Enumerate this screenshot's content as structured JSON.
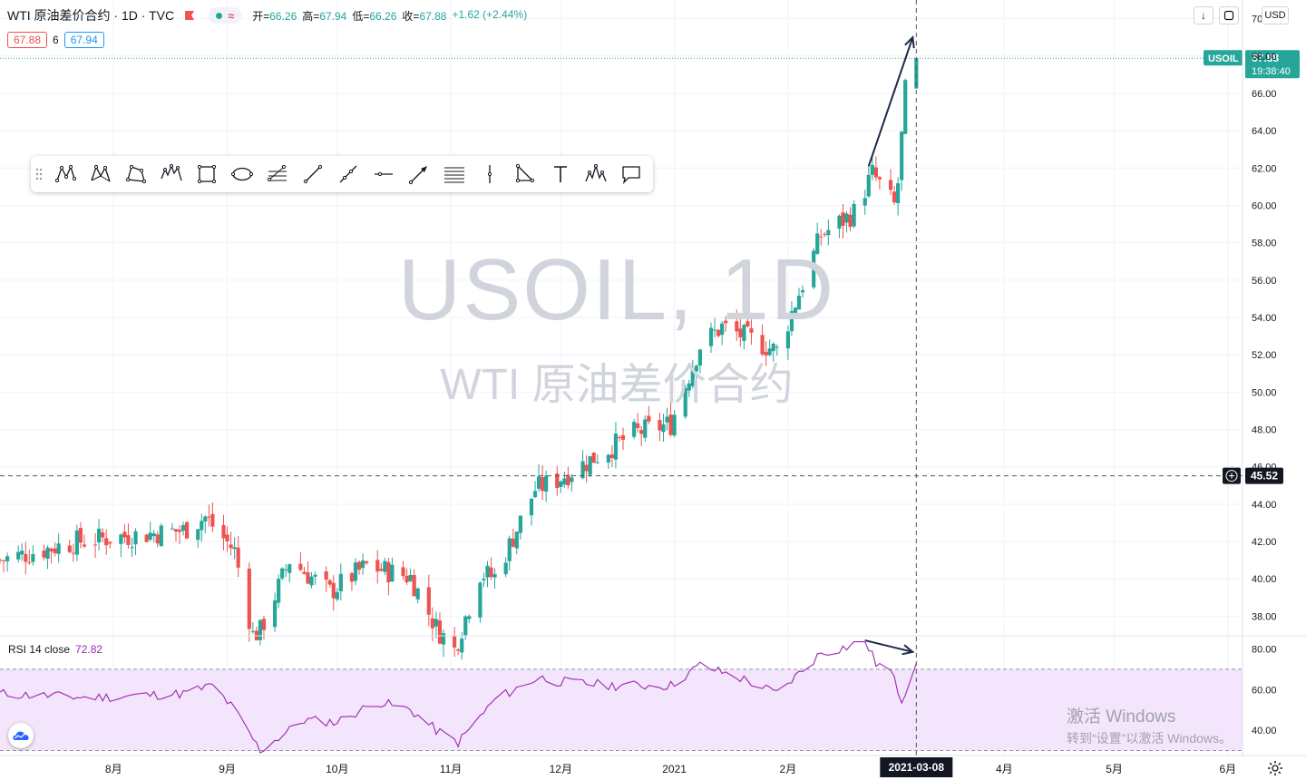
{
  "header": {
    "symbol_title": "WTI 原油差价合约 · 1D · TVC",
    "ohlc": {
      "open_label": "开",
      "open": "66.26",
      "high_label": "高",
      "high": "67.94",
      "low_label": "低",
      "low": "66.26",
      "close_label": "收",
      "close": "67.88",
      "change": "+1.62 (+2.44%)"
    },
    "sell_price": "67.88",
    "spread": "6",
    "buy_price": "67.94",
    "currency": "USD"
  },
  "watermark": {
    "line1": "USOIL, 1D",
    "line2": "WTI 原油差价合约"
  },
  "price_axis_labels": [
    "70.00",
    "68.00",
    "66.00",
    "64.00",
    "62.00",
    "60.00",
    "58.00",
    "56.00",
    "54.00",
    "52.00",
    "50.00",
    "48.00",
    "46.00",
    "44.00",
    "42.00",
    "40.00",
    "38.00"
  ],
  "last_price_tag": {
    "symbol": "USOIL",
    "price": "67.88",
    "countdown": "19:38:40"
  },
  "crosshair_price": "45.52",
  "crosshair_date": "2021-03-08",
  "rsi": {
    "label": "RSI 14 close",
    "value": "72.82",
    "axis_labels": [
      "80.00",
      "60.00",
      "40.00"
    ],
    "upper_band": 70,
    "lower_band": 30
  },
  "time_axis_labels": [
    "8月",
    "9月",
    "10月",
    "11月",
    "12月",
    "2021",
    "2月",
    "4月",
    "5月",
    "6月"
  ],
  "windows_activation": {
    "line1": "激活 Windows",
    "line2": "转到“设置”以激活 Windows。"
  },
  "toolbar": {
    "tools": [
      "xabcd-pattern-icon",
      "cypher-pattern-icon",
      "abcd-pattern-icon",
      "elliott-wave-icon",
      "rectangle-icon",
      "ellipse-icon",
      "fib-retracement-icon",
      "trend-line-icon",
      "ray-icon",
      "horizontal-line-icon",
      "arrow-icon",
      "parallel-channel-icon",
      "vertical-line-icon",
      "triangle-icon",
      "text-icon",
      "head-shoulders-icon",
      "callout-icon"
    ]
  },
  "colors": {
    "up": "#26a69a",
    "down": "#ef5350",
    "rsi_line": "#9c27b0",
    "rsi_band": "#f3e5fb",
    "arrow": "#1e2a4a"
  },
  "chart_data": [
    {
      "type": "candlestick",
      "title": "USOIL, 1D",
      "ylim": [
        37,
        71
      ],
      "x_range": [
        "2020-07-01",
        "2021-06-05"
      ],
      "anchors": [
        {
          "date": "2020-07-01",
          "close": 41.0
        },
        {
          "date": "2020-07-22",
          "close": 42.0
        },
        {
          "date": "2020-08-05",
          "close": 42.3
        },
        {
          "date": "2020-08-20",
          "close": 42.6
        },
        {
          "date": "2020-08-26",
          "close": 43.3
        },
        {
          "date": "2020-09-03",
          "close": 41.5
        },
        {
          "date": "2020-09-08",
          "close": 37.0
        },
        {
          "date": "2020-09-10",
          "close": 37.2
        },
        {
          "date": "2020-09-18",
          "close": 41.0
        },
        {
          "date": "2020-09-29",
          "close": 39.3
        },
        {
          "date": "2020-10-09",
          "close": 40.7
        },
        {
          "date": "2020-10-21",
          "close": 40.1
        },
        {
          "date": "2020-10-28",
          "close": 37.4
        },
        {
          "date": "2020-11-02",
          "close": 36.2
        },
        {
          "date": "2020-11-09",
          "close": 40.3
        },
        {
          "date": "2020-11-13",
          "close": 40.1
        },
        {
          "date": "2020-11-24",
          "close": 44.8
        },
        {
          "date": "2020-11-30",
          "close": 45.3
        },
        {
          "date": "2020-12-11",
          "close": 46.6
        },
        {
          "date": "2020-12-21",
          "close": 47.8
        },
        {
          "date": "2020-12-31",
          "close": 48.3
        },
        {
          "date": "2021-01-08",
          "close": 52.5
        },
        {
          "date": "2021-01-14",
          "close": 53.5
        },
        {
          "date": "2021-01-29",
          "close": 52.2
        },
        {
          "date": "2021-02-10",
          "close": 58.4
        },
        {
          "date": "2021-02-19",
          "close": 59.6
        },
        {
          "date": "2021-02-24",
          "close": 61.7
        },
        {
          "date": "2021-03-02",
          "close": 60.0
        },
        {
          "date": "2021-03-03",
          "close": 61.2
        },
        {
          "date": "2021-03-05",
          "close": 66.1
        },
        {
          "date": "2021-03-08",
          "open": 66.26,
          "high": 67.94,
          "low": 66.26,
          "close": 67.88
        }
      ]
    },
    {
      "type": "line",
      "title": "RSI 14 close",
      "ylim": [
        28,
        86
      ],
      "anchors": [
        {
          "date": "2020-07-01",
          "value": 58
        },
        {
          "date": "2020-07-25",
          "value": 56
        },
        {
          "date": "2020-08-20",
          "value": 58
        },
        {
          "date": "2020-08-28",
          "value": 62
        },
        {
          "date": "2020-09-03",
          "value": 50
        },
        {
          "date": "2020-09-10",
          "value": 30
        },
        {
          "date": "2020-09-22",
          "value": 45
        },
        {
          "date": "2020-10-01",
          "value": 44
        },
        {
          "date": "2020-10-12",
          "value": 54
        },
        {
          "date": "2020-10-21",
          "value": 50
        },
        {
          "date": "2020-10-28",
          "value": 40
        },
        {
          "date": "2020-11-03",
          "value": 34
        },
        {
          "date": "2020-11-13",
          "value": 55
        },
        {
          "date": "2020-11-25",
          "value": 66
        },
        {
          "date": "2020-11-30",
          "value": 64
        },
        {
          "date": "2020-12-15",
          "value": 62
        },
        {
          "date": "2020-12-31",
          "value": 62
        },
        {
          "date": "2021-01-08",
          "value": 72
        },
        {
          "date": "2021-01-20",
          "value": 65
        },
        {
          "date": "2021-01-29",
          "value": 58
        },
        {
          "date": "2021-02-10",
          "value": 78
        },
        {
          "date": "2021-02-17",
          "value": 81
        },
        {
          "date": "2021-02-22",
          "value": 84
        },
        {
          "date": "2021-02-25",
          "value": 73
        },
        {
          "date": "2021-03-01",
          "value": 69
        },
        {
          "date": "2021-03-04",
          "value": 55
        },
        {
          "date": "2021-03-08",
          "value": 72.82
        }
      ]
    }
  ]
}
